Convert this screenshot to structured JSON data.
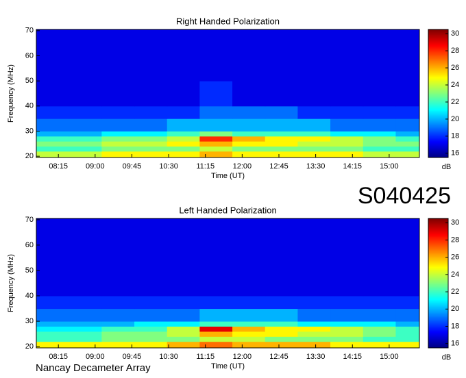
{
  "title": "S040425",
  "footer": "Nancay Decameter Array",
  "chart_data": [
    {
      "type": "heatmap",
      "title": "Right Handed Polarization",
      "xlabel": "Time (UT)",
      "ylabel": "Frequency (MHz)",
      "xlim": [
        468,
        937
      ],
      "ylim": [
        19.5,
        70.5
      ],
      "xticks": [
        {
          "value": 495,
          "label": "08:15"
        },
        {
          "value": 540,
          "label": "09:00"
        },
        {
          "value": 585,
          "label": "09:45"
        },
        {
          "value": 630,
          "label": "10:30"
        },
        {
          "value": 675,
          "label": "11:15"
        },
        {
          "value": 720,
          "label": "12:00"
        },
        {
          "value": 765,
          "label": "12:45"
        },
        {
          "value": 810,
          "label": "13:30"
        },
        {
          "value": 855,
          "label": "14:15"
        },
        {
          "value": 900,
          "label": "15:00"
        }
      ],
      "yticks": [
        20,
        30,
        40,
        50,
        60,
        70
      ],
      "xbins": [
        468,
        508,
        548,
        588,
        628,
        668,
        708,
        748,
        788,
        828,
        868,
        908,
        937
      ],
      "ybins": [
        19.5,
        22,
        24,
        26,
        28,
        30,
        35,
        40,
        50,
        60,
        70.5
      ],
      "z": [
        [
          24,
          24,
          25,
          25,
          25,
          26,
          25,
          25,
          25,
          25,
          24,
          24
        ],
        [
          22,
          22,
          23,
          23,
          23,
          24,
          23,
          23,
          23,
          23,
          22,
          22
        ],
        [
          23,
          23,
          24,
          24,
          25,
          26,
          25,
          25,
          24,
          24,
          23,
          23
        ],
        [
          22,
          22,
          23,
          23,
          24,
          28,
          26,
          25,
          25,
          24,
          23,
          22
        ],
        [
          20,
          20,
          21,
          21,
          22,
          23,
          22,
          22,
          22,
          21,
          21,
          20
        ],
        [
          19,
          19,
          19,
          19,
          20,
          20,
          20,
          20,
          20,
          19,
          19,
          19
        ],
        [
          18,
          18,
          18,
          18,
          18,
          19,
          19,
          19,
          18,
          18,
          18,
          18
        ],
        [
          17,
          17,
          17,
          17,
          17,
          18,
          17,
          17,
          17,
          17,
          17,
          17
        ],
        [
          17,
          17,
          17,
          17,
          17,
          17,
          17,
          17,
          17,
          17,
          17,
          17
        ],
        [
          17,
          17,
          17,
          17,
          17,
          17,
          17,
          17,
          17,
          17,
          17,
          17
        ]
      ],
      "clim": [
        15.5,
        30.5
      ],
      "cticks": [
        16,
        18,
        20,
        22,
        24,
        26,
        28,
        30
      ],
      "colorbar_label": "dB"
    },
    {
      "type": "heatmap",
      "title": "Left Handed Polarization",
      "xlabel": "Time (UT)",
      "ylabel": "Frequency (MHz)",
      "xlim": [
        468,
        937
      ],
      "ylim": [
        19.5,
        70.5
      ],
      "xticks": [
        {
          "value": 495,
          "label": "08:15"
        },
        {
          "value": 540,
          "label": "09:00"
        },
        {
          "value": 585,
          "label": "09:45"
        },
        {
          "value": 630,
          "label": "10:30"
        },
        {
          "value": 675,
          "label": "11:15"
        },
        {
          "value": 720,
          "label": "12:00"
        },
        {
          "value": 765,
          "label": "12:45"
        },
        {
          "value": 810,
          "label": "13:30"
        },
        {
          "value": 855,
          "label": "14:15"
        },
        {
          "value": 900,
          "label": "15:00"
        }
      ],
      "yticks": [
        20,
        30,
        40,
        50,
        60,
        70
      ],
      "xbins": [
        468,
        508,
        548,
        588,
        628,
        668,
        708,
        748,
        788,
        828,
        868,
        908,
        937
      ],
      "ybins": [
        19.5,
        22,
        24,
        26,
        28,
        30,
        35,
        40,
        50,
        60,
        70.5
      ],
      "z": [
        [
          25,
          25,
          25,
          25,
          26,
          27,
          26,
          26,
          26,
          25,
          25,
          25
        ],
        [
          22,
          22,
          23,
          23,
          23,
          24,
          24,
          23,
          23,
          23,
          22,
          22
        ],
        [
          22,
          22,
          23,
          23,
          24,
          26,
          25,
          25,
          24,
          24,
          23,
          22
        ],
        [
          21,
          21,
          22,
          22,
          24,
          29,
          26,
          25,
          25,
          24,
          23,
          22
        ],
        [
          20,
          20,
          20,
          21,
          21,
          22,
          22,
          22,
          21,
          21,
          21,
          20
        ],
        [
          19,
          19,
          19,
          19,
          19,
          20,
          20,
          20,
          19,
          19,
          19,
          19
        ],
        [
          18,
          18,
          18,
          18,
          18,
          18,
          18,
          18,
          18,
          18,
          18,
          18
        ],
        [
          17,
          17,
          17,
          17,
          17,
          17,
          17,
          17,
          17,
          17,
          17,
          17
        ],
        [
          17,
          17,
          17,
          17,
          17,
          17,
          17,
          17,
          17,
          17,
          17,
          17
        ],
        [
          17,
          17,
          17,
          17,
          17,
          17,
          17,
          17,
          17,
          17,
          17,
          17
        ]
      ],
      "clim": [
        15.5,
        30.5
      ],
      "cticks": [
        16,
        18,
        20,
        22,
        24,
        26,
        28,
        30
      ],
      "colorbar_label": "dB"
    }
  ]
}
